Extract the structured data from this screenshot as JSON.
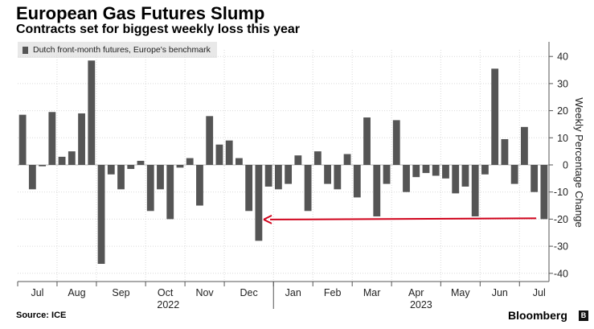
{
  "header": {
    "title": "European Gas Futures Slump",
    "subtitle": "Contracts set for biggest weekly loss this year"
  },
  "legend": {
    "label": "Dutch front-month futures, Europe's benchmark"
  },
  "footer": {
    "source": "Source: ICE",
    "brand": "Bloomberg",
    "brand_icon": "B"
  },
  "colors": {
    "bar": "#555555",
    "arrow": "#d0021b",
    "grid": "#d9d9d9",
    "legend_bg": "#e8e8e8"
  },
  "chart_data": {
    "type": "bar",
    "title": "European Gas Futures Slump",
    "subtitle": "Contracts set for biggest weekly loss this year",
    "ylabel": "Weekly Percentage Change",
    "ylim": [
      -42,
      42
    ],
    "yticks": [
      40,
      30,
      20,
      10,
      0,
      -10,
      -20,
      -30,
      -40
    ],
    "grid": true,
    "legend_position": "top-left",
    "series": [
      {
        "name": "Dutch front-month futures, Europe's benchmark",
        "values": [
          18.5,
          -9,
          -0.5,
          19.5,
          3,
          5,
          19,
          38.5,
          -36.5,
          -3.5,
          -9,
          -1.5,
          1.5,
          -17,
          -9,
          -20,
          -1,
          2.5,
          -15,
          18,
          7.5,
          9,
          2.5,
          -17,
          -28,
          -8,
          -9,
          -7,
          3.5,
          -17,
          5,
          -7,
          -9,
          4,
          -12,
          17.5,
          -19,
          -7,
          16.5,
          -10,
          -4.5,
          -3,
          -4,
          -5,
          -10.5,
          -8,
          -19,
          -3.5,
          35.5,
          9.5,
          -7,
          14,
          -10,
          -20
        ]
      }
    ],
    "x_month_labels": [
      "Jul",
      "Aug",
      "Sep",
      "Oct",
      "Nov",
      "Dec",
      "Jan",
      "Feb",
      "Mar",
      "Apr",
      "May",
      "Jun",
      "Jul"
    ],
    "x_year_labels": [
      "2022",
      "2023"
    ],
    "annotation": {
      "type": "arrow",
      "from_bar_index": 53,
      "to_bar_index": 24,
      "at_value": -20,
      "direction": "left"
    }
  }
}
